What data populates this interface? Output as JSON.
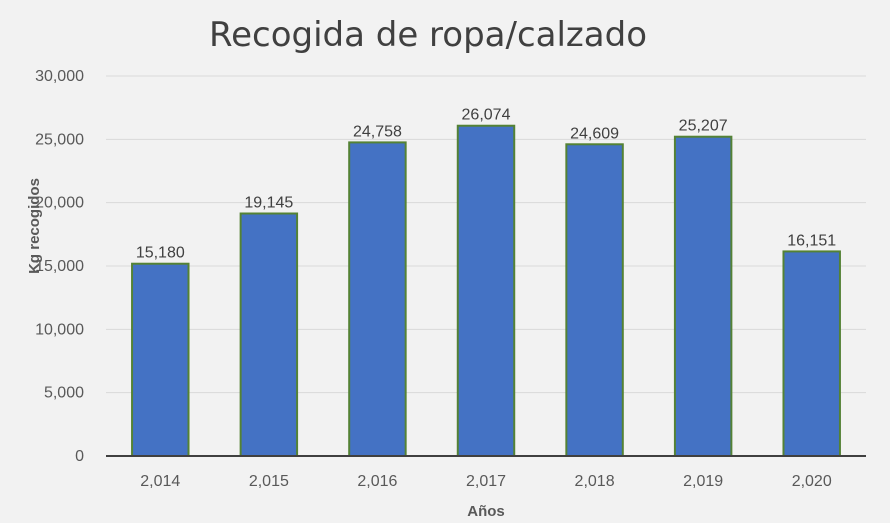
{
  "chart_data": {
    "type": "bar",
    "title": "Recogida de ropa/calzado",
    "xlabel": "Años",
    "ylabel": "Kg recogidos",
    "categories": [
      "2,014",
      "2,015",
      "2,016",
      "2,017",
      "2,018",
      "2,019",
      "2,020"
    ],
    "values": [
      15180,
      19145,
      24758,
      26074,
      24609,
      25207,
      16151
    ],
    "value_labels": [
      "15,180",
      "19,145",
      "24,758",
      "26,074",
      "24,609",
      "25,207",
      "16,151"
    ],
    "ylim": [
      0,
      30000
    ],
    "yticks": [
      0,
      5000,
      10000,
      15000,
      20000,
      25000,
      30000
    ],
    "ytick_labels": [
      "0",
      "5,000",
      "10,000",
      "15,000",
      "20,000",
      "25,000",
      "30,000"
    ],
    "grid": true,
    "legend": "none",
    "colors": {
      "bar_fill": "#4472c4",
      "bar_edge": "#548235",
      "background": "#f2f2f2"
    }
  }
}
